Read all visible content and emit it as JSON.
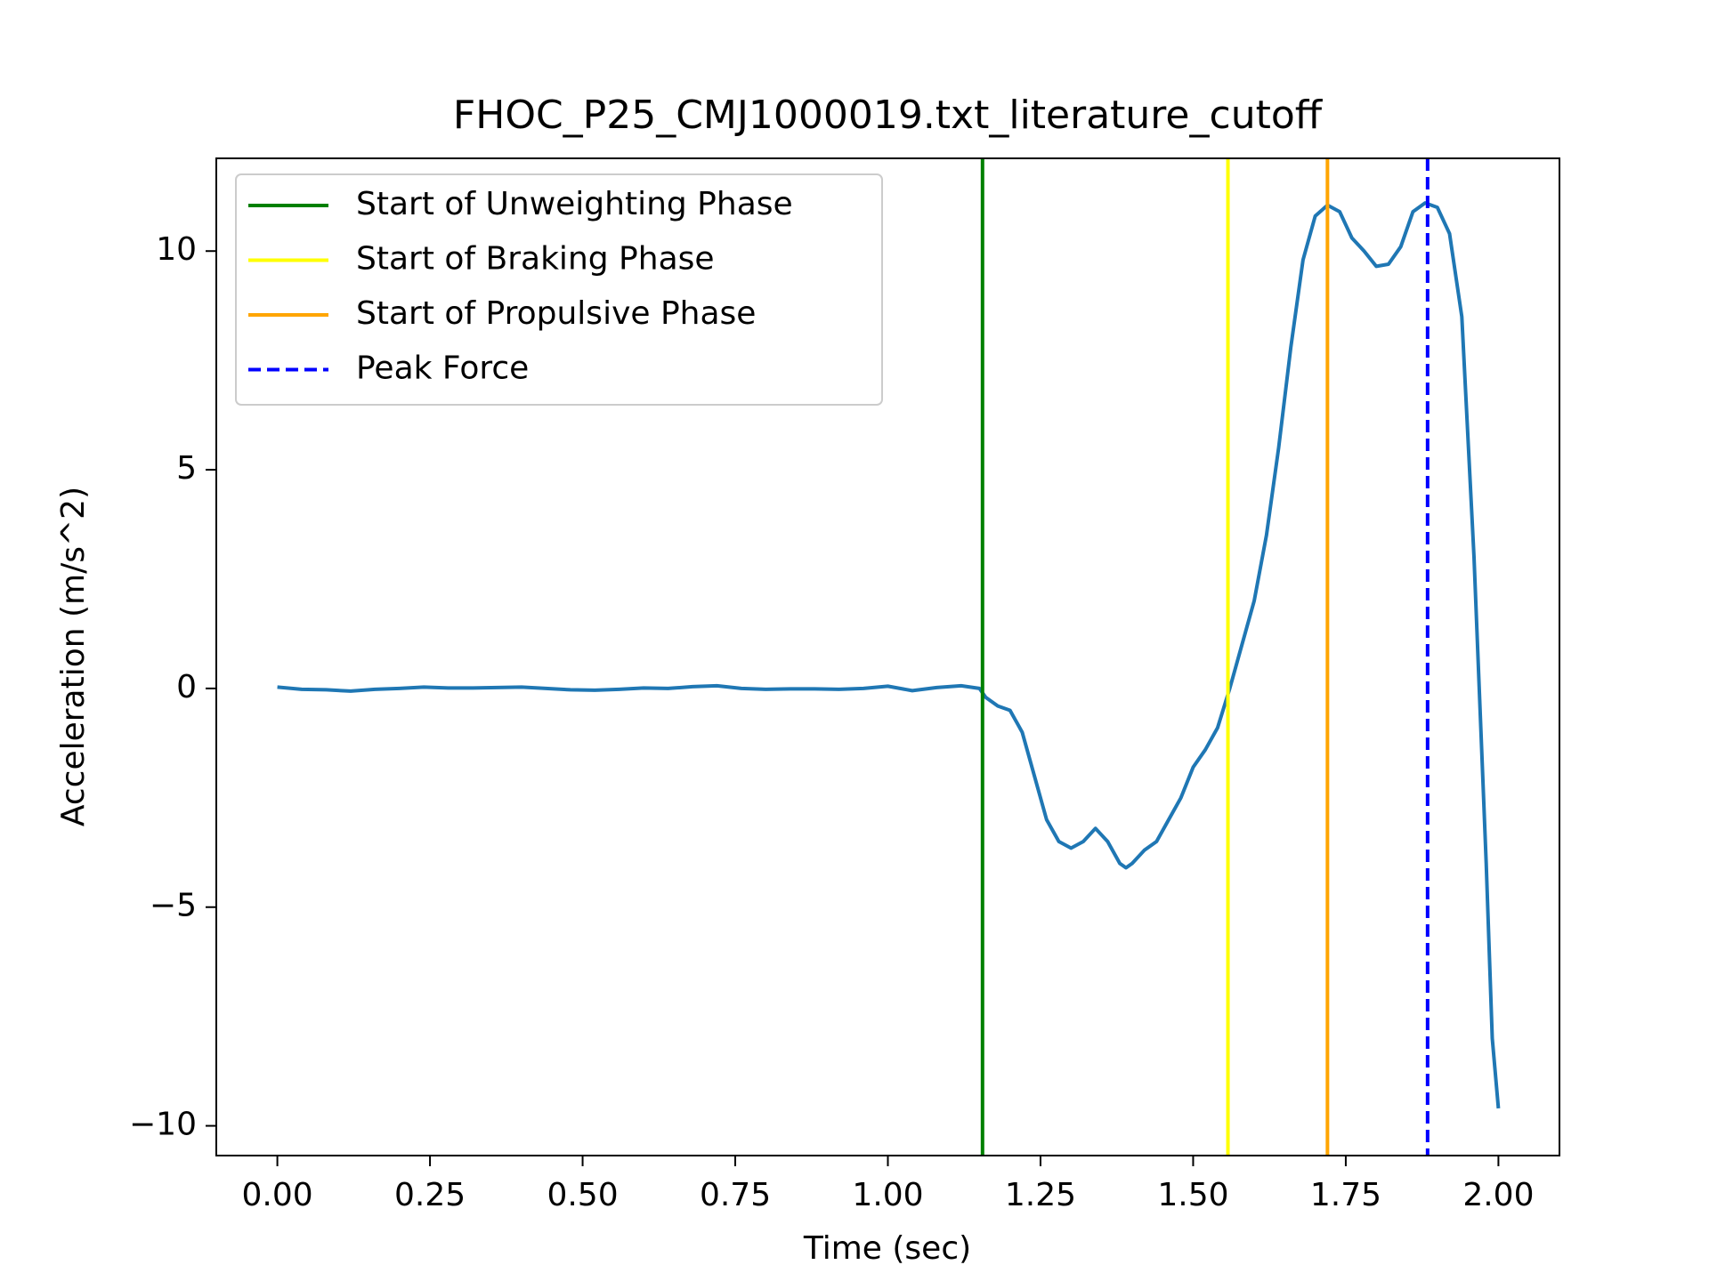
{
  "chart_data": {
    "type": "line",
    "title": "FHOC_P25_CMJ1000019.txt_literature_cutoff",
    "x_label": "Time (sec)",
    "y_label": "Acceleration (m/s^2)",
    "xlim": [
      -0.1,
      2.1
    ],
    "ylim": [
      -10.68,
      12.12
    ],
    "xticks": [
      {
        "value": 0,
        "label": "0.00"
      },
      {
        "value": 0.25,
        "label": "0.25"
      },
      {
        "value": 0.5,
        "label": "0.50"
      },
      {
        "value": 0.75,
        "label": "0.75"
      },
      {
        "value": 1,
        "label": "1.00"
      },
      {
        "value": 1.25,
        "label": "1.25"
      },
      {
        "value": 1.5,
        "label": "1.50"
      },
      {
        "value": 1.75,
        "label": "1.75"
      },
      {
        "value": 2,
        "label": "2.00"
      }
    ],
    "yticks": [
      {
        "value": -10,
        "label": "−10"
      },
      {
        "value": -5,
        "label": "−5"
      },
      0,
      5,
      10
    ],
    "legend": "upper left",
    "x": [
      0,
      0.04,
      0.08,
      0.12,
      0.16,
      0.2,
      0.24,
      0.28,
      0.32,
      0.36,
      0.4,
      0.44,
      0.48,
      0.52,
      0.56,
      0.6,
      0.64,
      0.68,
      0.72,
      0.76,
      0.8,
      0.84,
      0.88,
      0.92,
      0.96,
      1.0,
      1.04,
      1.08,
      1.12,
      1.15,
      1.16,
      1.18,
      1.2,
      1.22,
      1.24,
      1.26,
      1.28,
      1.3,
      1.32,
      1.34,
      1.36,
      1.38,
      1.39,
      1.4,
      1.42,
      1.44,
      1.46,
      1.48,
      1.5,
      1.52,
      1.54,
      1.56,
      1.58,
      1.6,
      1.62,
      1.64,
      1.66,
      1.68,
      1.7,
      1.72,
      1.74,
      1.76,
      1.78,
      1.8,
      1.82,
      1.84,
      1.86,
      1.88,
      1.9,
      1.92,
      1.94,
      1.96,
      1.98,
      1.99,
      2.0
    ],
    "series": [
      {
        "color": "#1f77b4",
        "values": [
          0.03,
          -0.02,
          -0.03,
          -0.06,
          -0.02,
          0.0,
          0.03,
          0.01,
          0.01,
          0.02,
          0.03,
          0.0,
          -0.03,
          -0.04,
          -0.02,
          0.01,
          0.0,
          0.04,
          0.06,
          0.0,
          -0.02,
          -0.01,
          -0.01,
          -0.02,
          0.0,
          0.05,
          -0.05,
          0.02,
          0.06,
          0.0,
          -0.2,
          -0.4,
          -0.5,
          -1.0,
          -2.0,
          -3.0,
          -3.5,
          -3.65,
          -3.5,
          -3.2,
          -3.5,
          -4.0,
          -4.1,
          -4.0,
          -3.7,
          -3.5,
          -3.0,
          -2.5,
          -1.8,
          -1.4,
          -0.9,
          0.0,
          1.0,
          2.0,
          3.5,
          5.5,
          7.8,
          9.8,
          10.8,
          11.05,
          10.9,
          10.3,
          10.0,
          9.65,
          9.7,
          10.1,
          10.9,
          11.1,
          11.0,
          10.4,
          8.5,
          3.0,
          -4.0,
          -8.0,
          -9.6
        ]
      }
    ],
    "vlines": [
      {
        "name": "Start of Unweighting Phase",
        "color": "green",
        "x": 1.155,
        "dashed": false
      },
      {
        "name": "Start of Braking Phase",
        "color": "yellow",
        "x": 1.557,
        "dashed": false
      },
      {
        "name": "Start of Propulsive Phase",
        "color": "orange",
        "x": 1.72,
        "dashed": false
      },
      {
        "name": "Peak Force",
        "color": "blue",
        "x": 1.884,
        "dashed": true
      }
    ]
  }
}
